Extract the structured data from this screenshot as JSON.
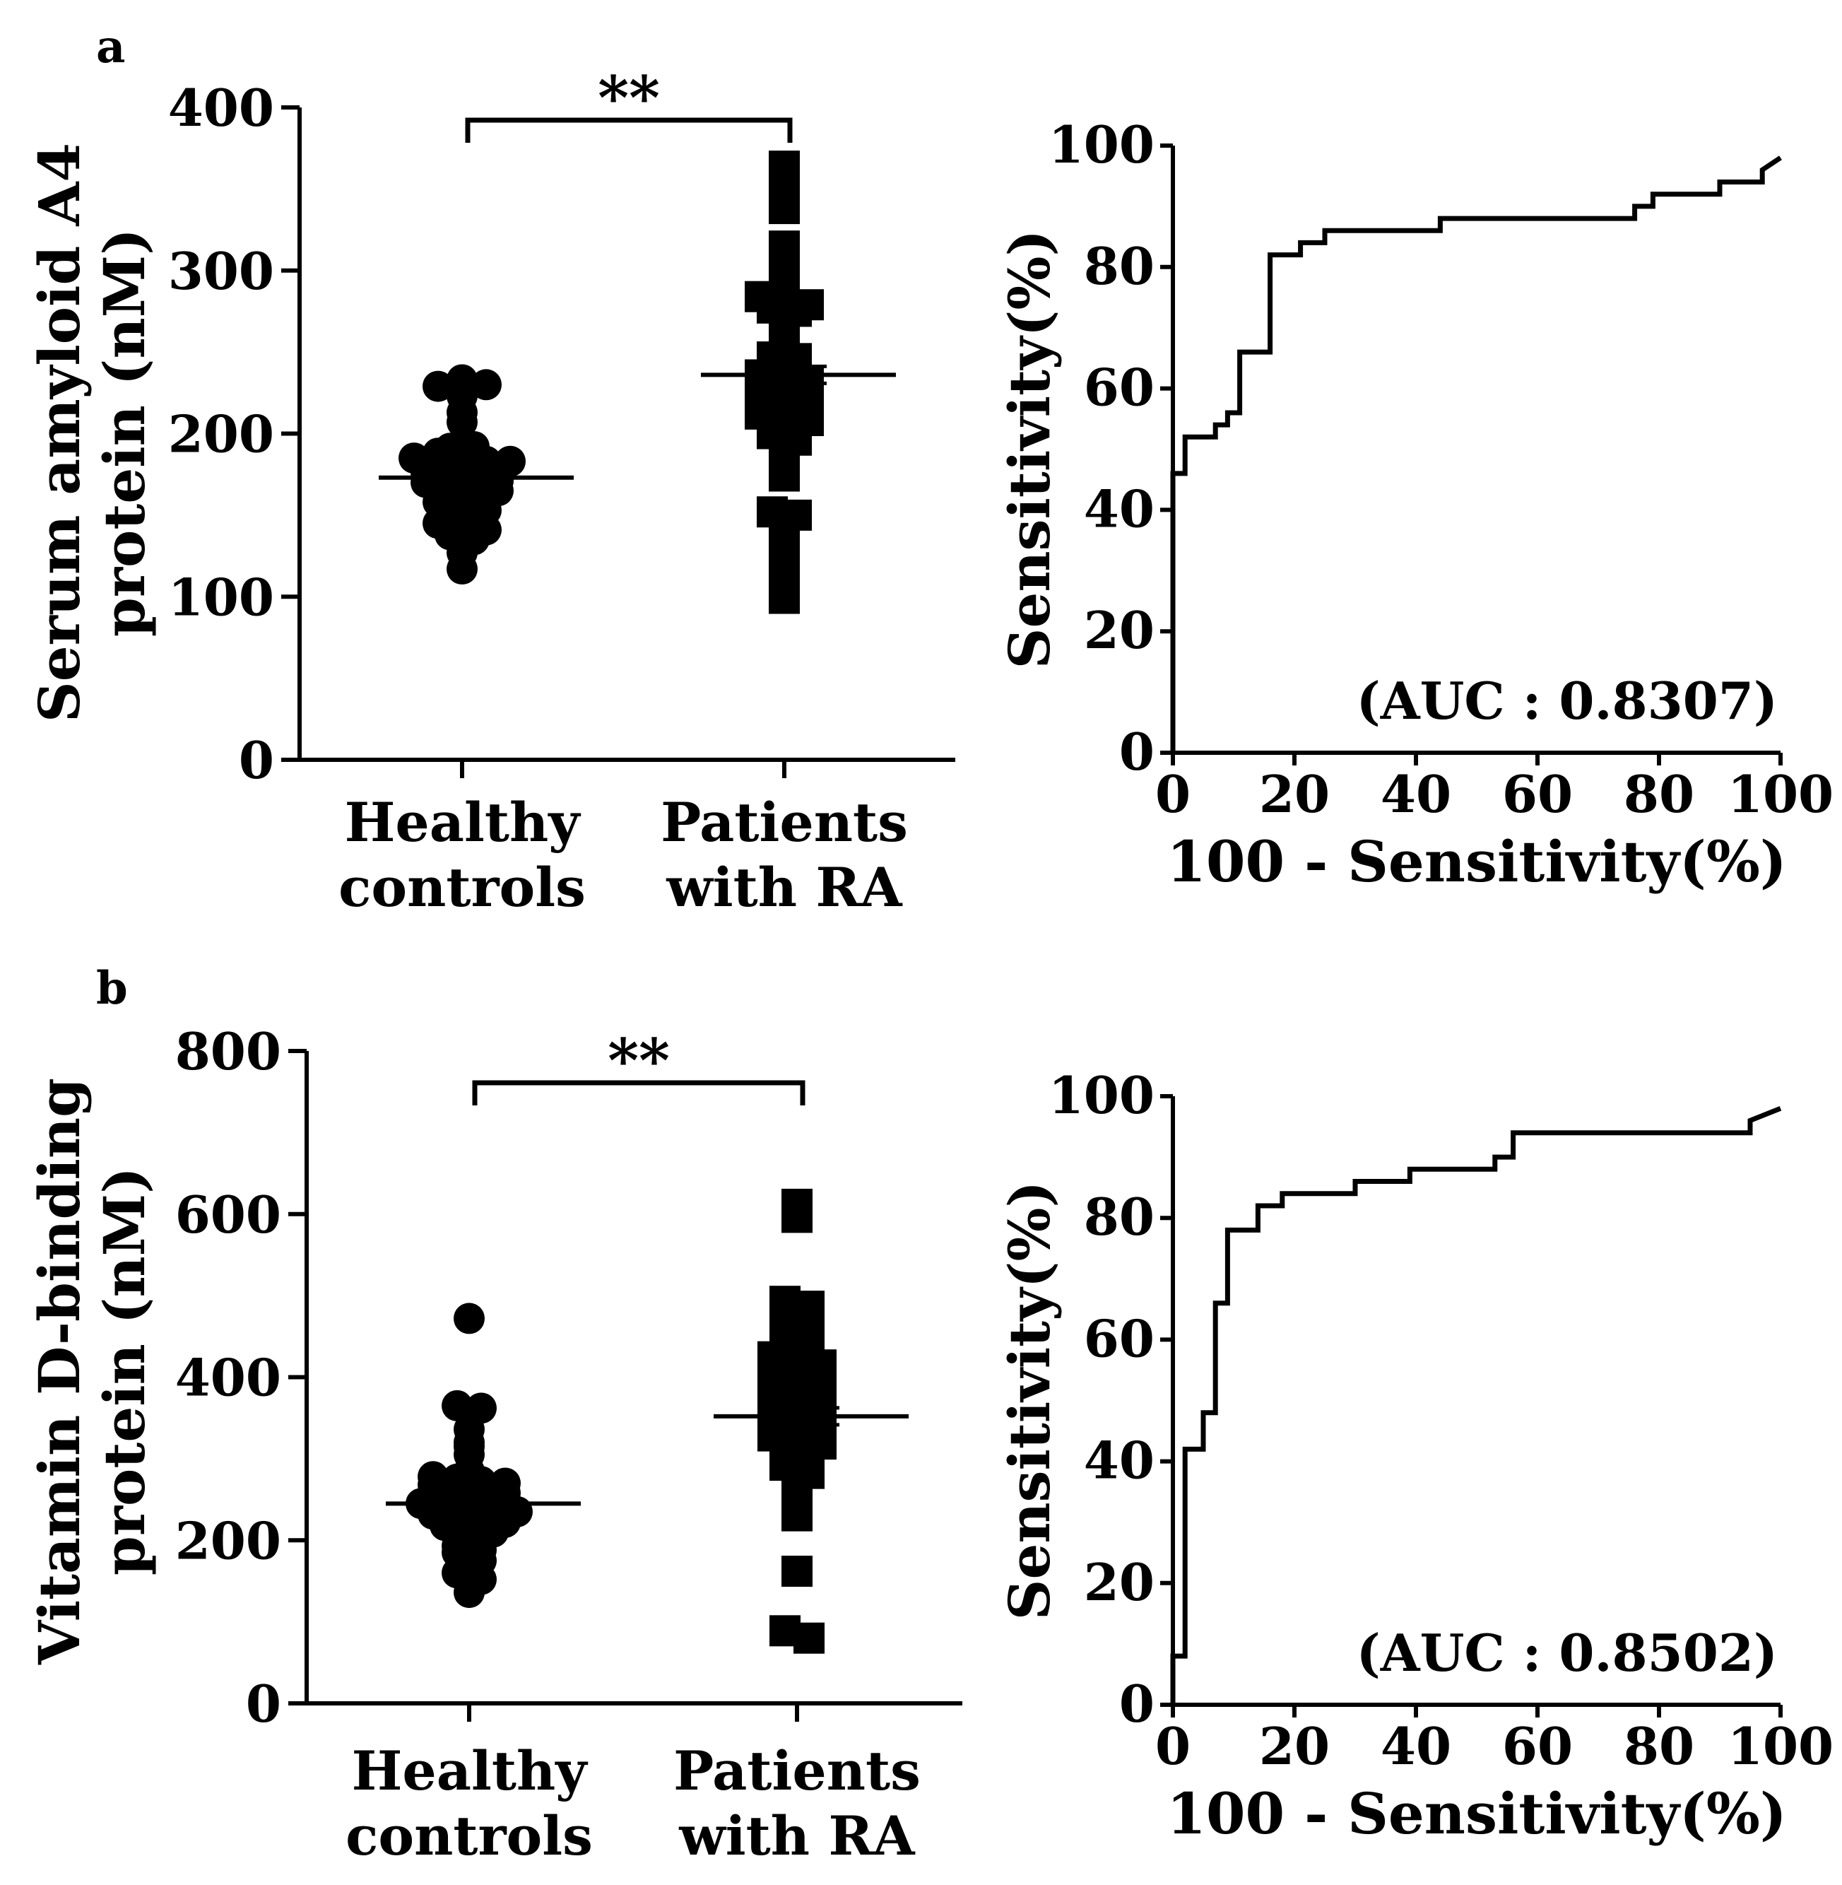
{
  "chart_data": [
    {
      "panel": "a",
      "type": "scatter",
      "subtype": "dot-plot",
      "categories": [
        "Healthy\ncontrols",
        "Patients\nwith RA"
      ],
      "category_lines": [
        [
          "Healthy",
          "controls"
        ],
        [
          "Patients",
          "with RA"
        ]
      ],
      "ylabel_lines": [
        "Serum amyloid A4",
        "protein (nM)"
      ],
      "ylim": [
        0,
        400
      ],
      "yticks": [
        0,
        100,
        200,
        300,
        400
      ],
      "significance": "**",
      "series": [
        {
          "name": "Healthy controls",
          "marker": "circle",
          "mean": 173,
          "values": [
            229,
            233,
            227,
            230,
            223,
            213,
            207,
            185,
            191,
            188,
            192,
            186,
            183,
            183,
            178,
            176,
            175,
            173,
            171,
            170,
            168,
            166,
            164,
            165,
            162,
            160,
            158,
            155,
            153,
            150,
            148,
            145,
            143,
            141,
            138,
            135,
            133,
            127,
            117
          ]
        },
        {
          "name": "Patients with RA",
          "marker": "square",
          "mean": 236,
          "values": [
            364,
            354,
            346,
            342,
            338,
            315,
            302,
            285,
            284,
            281,
            279,
            277,
            275,
            262,
            260,
            250,
            247,
            246,
            242,
            239,
            236,
            234,
            232,
            230,
            228,
            225,
            222,
            218,
            215,
            212,
            210,
            208,
            203,
            200,
            196,
            185,
            174,
            152,
            150,
            135,
            124,
            115,
            99
          ]
        }
      ]
    },
    {
      "panel": "a",
      "type": "line",
      "subtype": "roc-step",
      "xlabel": "100 - Sensitivity(%)",
      "ylabel": "Sensitivity(%)",
      "xlim": [
        0,
        100
      ],
      "ylim": [
        0,
        100
      ],
      "xticks": [
        0,
        20,
        40,
        60,
        80,
        100
      ],
      "yticks": [
        0,
        20,
        40,
        60,
        80,
        100
      ],
      "annotation": "(AUC : 0.8307)",
      "x": [
        0,
        0,
        2,
        2,
        7,
        7,
        9,
        9,
        11,
        11,
        16,
        16,
        21,
        21,
        25,
        25,
        44,
        44,
        76,
        76,
        79,
        79,
        90,
        90,
        97,
        97,
        100
      ],
      "y": [
        0,
        46,
        46,
        52,
        52,
        54,
        54,
        56,
        56,
        66,
        66,
        82,
        82,
        84,
        84,
        86,
        86,
        88,
        88,
        90,
        90,
        92,
        92,
        94,
        94,
        96,
        98
      ]
    },
    {
      "panel": "b",
      "type": "scatter",
      "subtype": "dot-plot",
      "categories": [
        "Healthy\ncontrols",
        "Patients\nwith RA"
      ],
      "category_lines": [
        [
          "Healthy",
          "controls"
        ],
        [
          "Patients",
          "with RA"
        ]
      ],
      "ylabel_lines": [
        "Vitamin D-binding",
        "protein (nM)"
      ],
      "ylim": [
        0,
        800
      ],
      "yticks": [
        0,
        200,
        400,
        600,
        800
      ],
      "significance": "**",
      "series": [
        {
          "name": "Healthy controls",
          "marker": "circle",
          "mean": 245,
          "values": [
            472,
            365,
            362,
            336,
            320,
            315,
            305,
            285,
            278,
            275,
            272,
            270,
            268,
            265,
            262,
            258,
            255,
            252,
            250,
            247,
            245,
            243,
            240,
            238,
            235,
            232,
            228,
            225,
            222,
            218,
            215,
            210,
            205,
            200,
            193,
            188,
            185,
            175,
            160,
            152,
            136
          ]
        },
        {
          "name": "Patients with RA",
          "marker": "square",
          "mean": 352,
          "values": [
            612,
            596,
            493,
            487,
            461,
            452,
            430,
            425,
            418,
            415,
            412,
            405,
            400,
            396,
            392,
            388,
            383,
            378,
            375,
            372,
            368,
            365,
            360,
            356,
            352,
            348,
            345,
            340,
            336,
            332,
            328,
            325,
            318,
            310,
            298,
            292,
            282,
            265,
            252,
            236,
            230,
            162,
            89,
            80
          ]
        }
      ]
    },
    {
      "panel": "b",
      "type": "line",
      "subtype": "roc-step",
      "xlabel": "100 - Sensitivity(%)",
      "ylabel": "Sensitivity(%)",
      "xlim": [
        0,
        100
      ],
      "ylim": [
        0,
        100
      ],
      "xticks": [
        0,
        20,
        40,
        60,
        80,
        100
      ],
      "yticks": [
        0,
        20,
        40,
        60,
        80,
        100
      ],
      "annotation": "(AUC : 0.8502)",
      "x": [
        0,
        0,
        2,
        2,
        5,
        5,
        7,
        7,
        9,
        9,
        14,
        14,
        18,
        18,
        30,
        30,
        39,
        39,
        53,
        53,
        56,
        56,
        95,
        95,
        100
      ],
      "y": [
        0,
        8,
        8,
        42,
        42,
        48,
        48,
        66,
        66,
        78,
        78,
        82,
        82,
        84,
        84,
        86,
        86,
        88,
        88,
        90,
        90,
        94,
        94,
        96,
        98
      ]
    }
  ]
}
